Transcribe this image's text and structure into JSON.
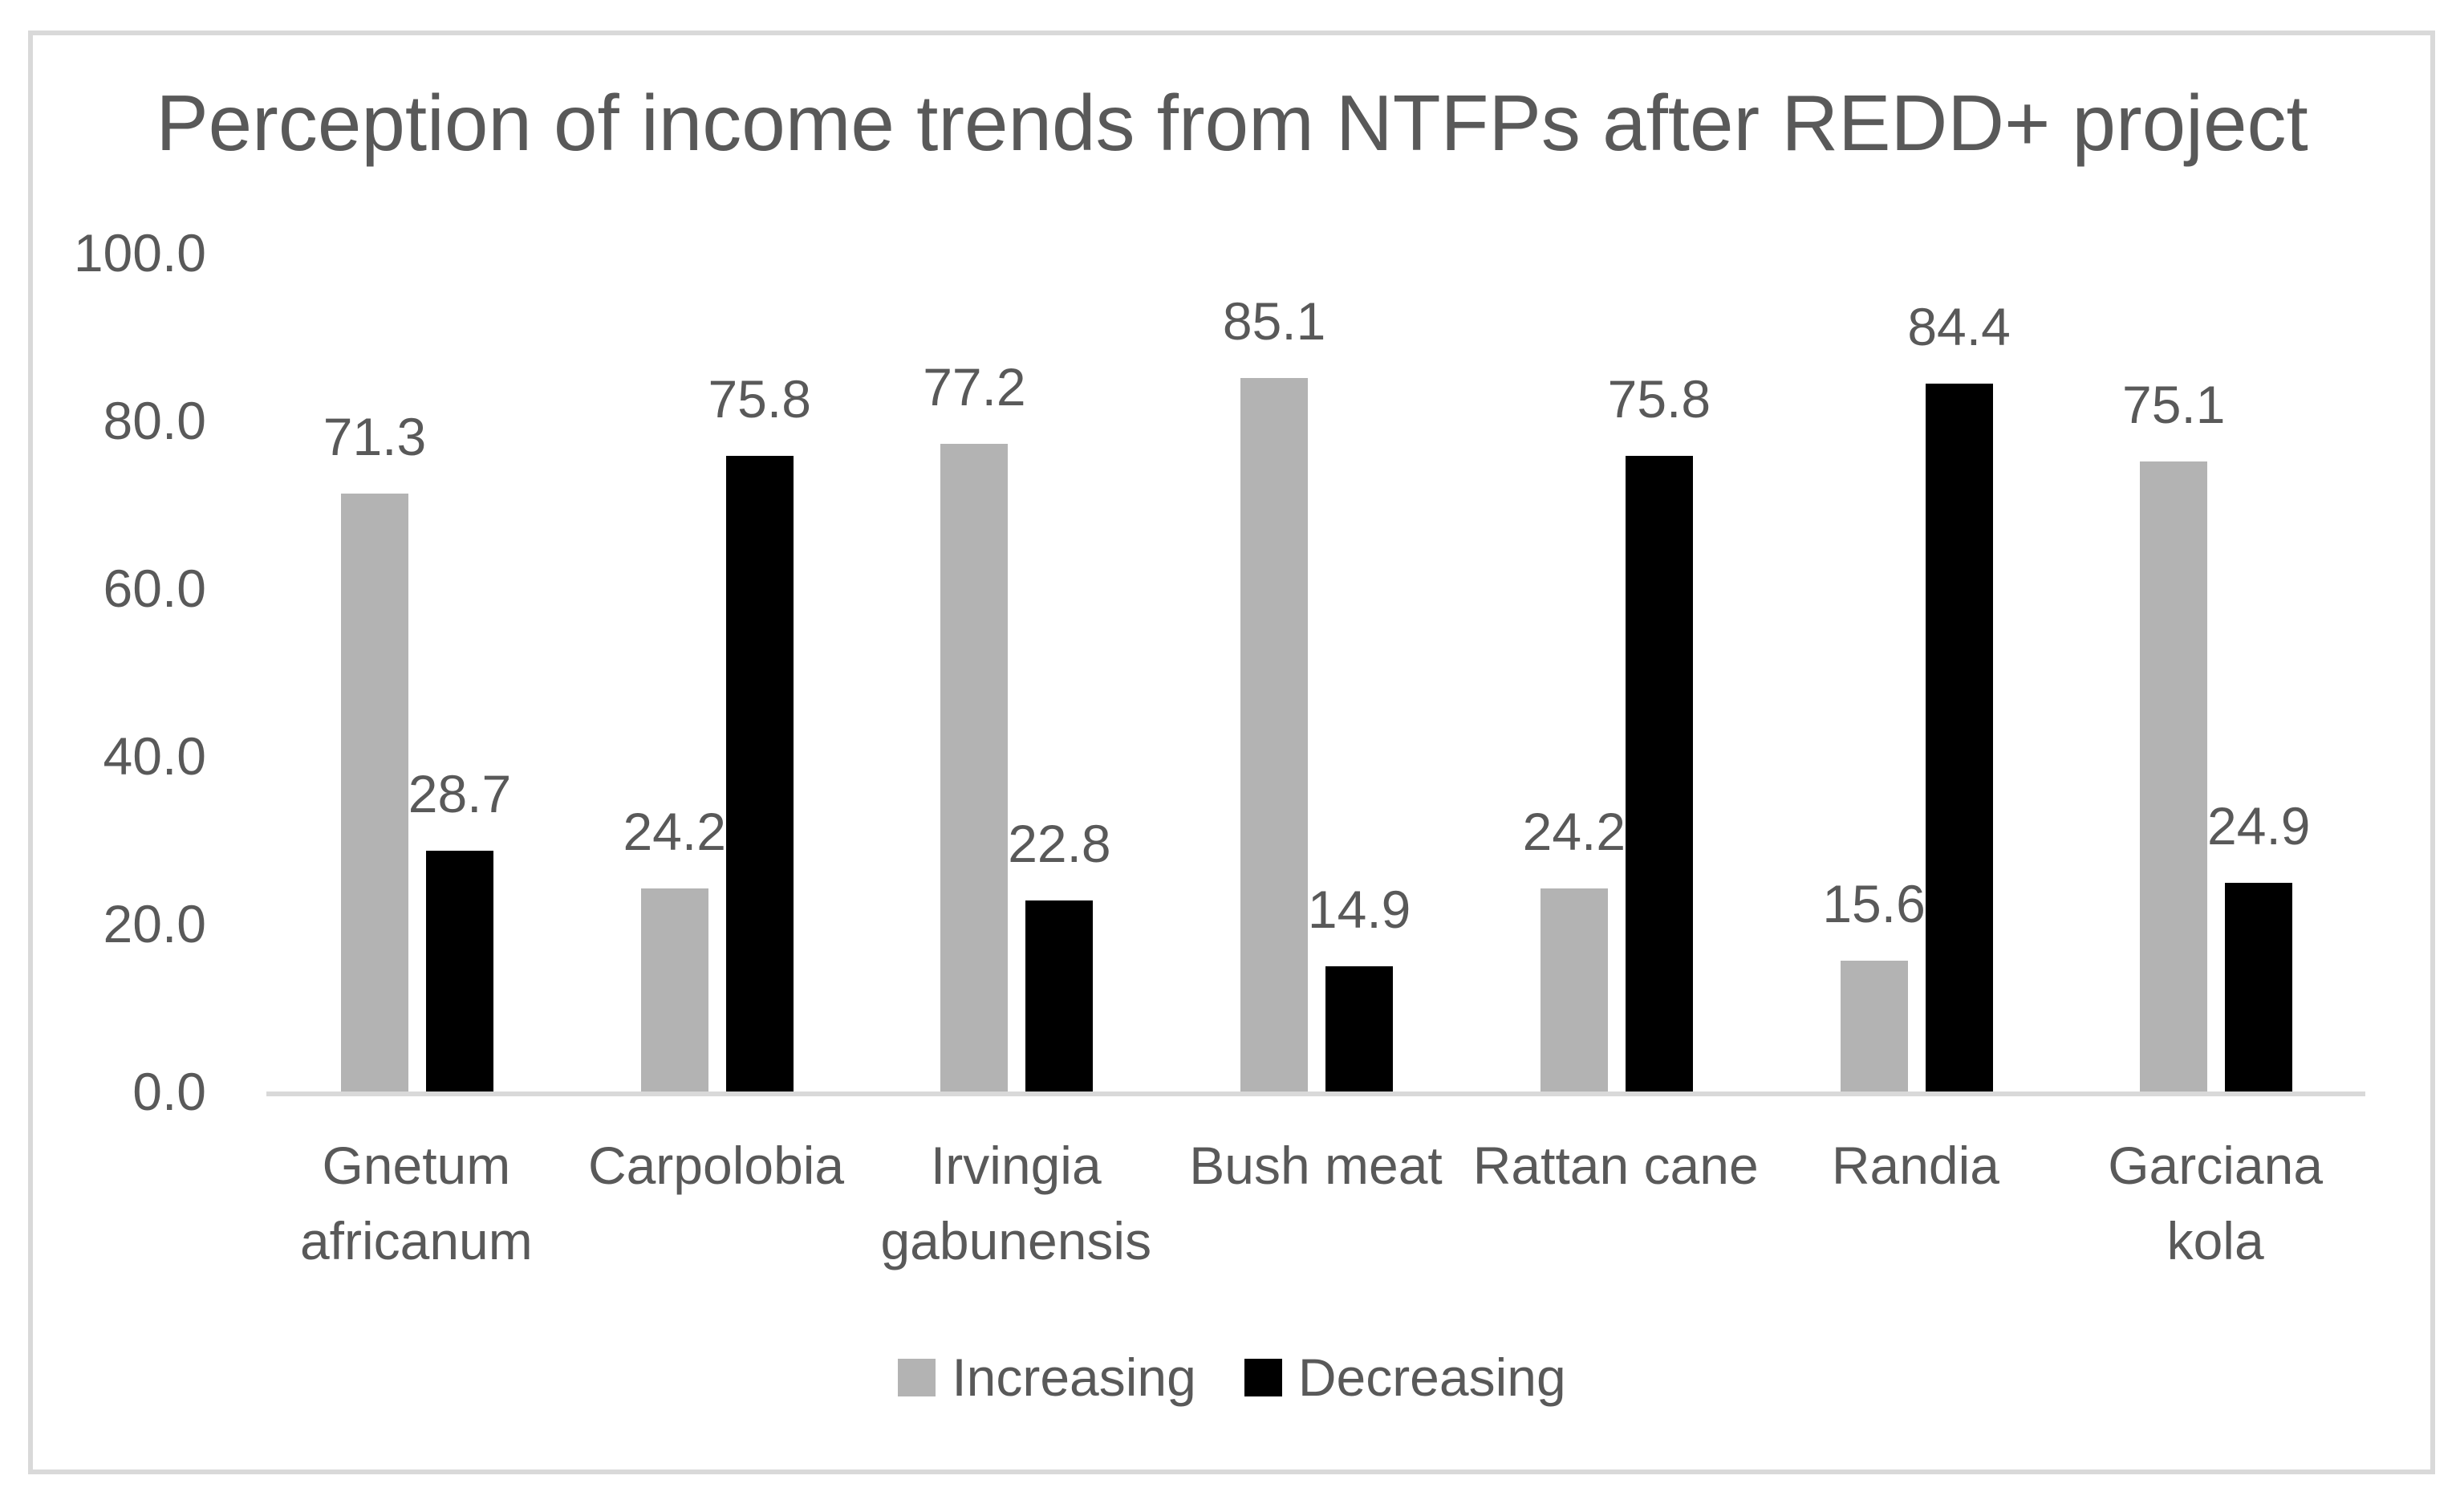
{
  "chart_data": {
    "type": "bar",
    "title": "Perception of income trends from NTFPs after REDD+ project",
    "categories": [
      "Gnetum africanum",
      "Carpolobia",
      "Irvingia gabunensis",
      "Bush meat",
      "Rattan cane",
      "Randia",
      "Garciana kola"
    ],
    "series": [
      {
        "name": "Increasing",
        "color": "#b3b3b3",
        "values": [
          71.3,
          24.2,
          77.2,
          85.1,
          24.2,
          15.6,
          75.1
        ]
      },
      {
        "name": "Decreasing",
        "color": "#000000",
        "values": [
          28.7,
          75.8,
          22.8,
          14.9,
          75.8,
          84.4,
          24.9
        ]
      }
    ],
    "value_labels": [
      "71.3",
      "28.7",
      "24.2",
      "75.8",
      "77.2",
      "22.8",
      "85.1",
      "14.9",
      "24.2",
      "75.8",
      "15.6",
      "84.4",
      "75.1",
      "24.9"
    ],
    "xlabel": "",
    "ylabel": "",
    "ylim": [
      0,
      100
    ],
    "yticks": [
      {
        "label": "100.0",
        "value": 100
      },
      {
        "label": "80.0",
        "value": 80
      },
      {
        "label": "60.0",
        "value": 60
      },
      {
        "label": "40.0",
        "value": 40
      },
      {
        "label": "20.0",
        "value": 20
      },
      {
        "label": "0.0",
        "value": 0
      }
    ],
    "grid": false,
    "legend_position": "bottom"
  },
  "colors": {
    "border": "#d9d9d9",
    "axis_line": "#d9d9d9",
    "text": "#595959",
    "background": "#ffffff"
  }
}
